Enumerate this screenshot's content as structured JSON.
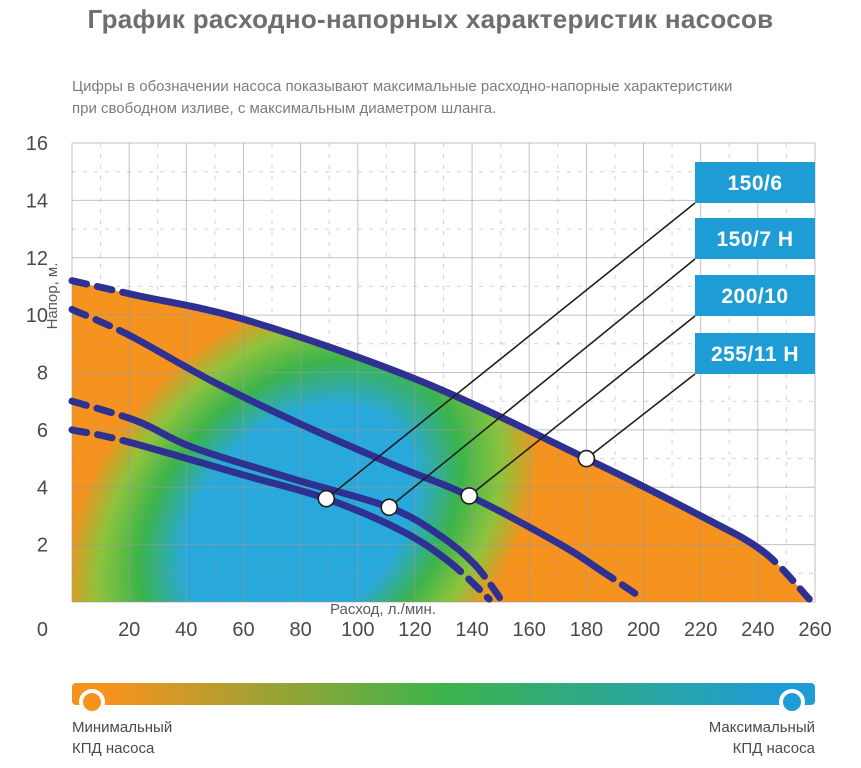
{
  "page": {
    "title": "График расходно-напорных характеристик насосов",
    "subtitle_line1": "Цифры в обозначении насоса показывают максимальные расходно-напорные характеристики",
    "subtitle_line2": "при свободном изливе, с максимальным диаметром шланга."
  },
  "chart_data": {
    "type": "line",
    "title": "График расходно-напорных характеристик насосов",
    "xlabel": "Расход, л./мин.",
    "ylabel": "Напор, м.",
    "xlim": [
      0,
      260
    ],
    "ylim": [
      0,
      16
    ],
    "x_ticks": [
      20,
      40,
      60,
      80,
      100,
      120,
      140,
      160,
      180,
      200,
      220,
      240,
      260
    ],
    "y_ticks": [
      0,
      2,
      4,
      6,
      8,
      10,
      12,
      14,
      16
    ],
    "minor_x_step": 10,
    "minor_y_step": 1,
    "grid": true,
    "origin_label": "0",
    "legend_position": "right-callout-boxes",
    "series": [
      {
        "name": "150/6",
        "max_flow_lpm": 150,
        "max_head_m": 6,
        "points": [
          [
            0,
            6.0
          ],
          [
            19,
            5.6
          ],
          [
            61,
            4.4
          ],
          [
            89,
            3.6
          ],
          [
            115,
            2.5
          ],
          [
            132,
            1.4
          ],
          [
            146,
            0.1
          ]
        ],
        "callout": [
          89,
          3.6
        ]
      },
      {
        "name": "150/7 Н",
        "max_flow_lpm": 150,
        "max_head_m": 7,
        "points": [
          [
            0,
            7.0
          ],
          [
            23,
            6.3
          ],
          [
            42,
            5.4
          ],
          [
            77,
            4.3
          ],
          [
            111,
            3.3
          ],
          [
            129,
            2.3
          ],
          [
            141,
            1.3
          ],
          [
            150,
            0.1
          ]
        ],
        "callout": [
          111,
          3.3
        ]
      },
      {
        "name": "200/10",
        "max_flow_lpm": 200,
        "max_head_m": 10,
        "points": [
          [
            0,
            10.2
          ],
          [
            20,
            9.3
          ],
          [
            49,
            7.7
          ],
          [
            80,
            6.2
          ],
          [
            112,
            4.8
          ],
          [
            139,
            3.7
          ],
          [
            171,
            2.0
          ],
          [
            185,
            1.1
          ],
          [
            200,
            0.1
          ]
        ],
        "callout": [
          139,
          3.7
        ]
      },
      {
        "name": "255/11 Н",
        "max_flow_lpm": 255,
        "max_head_m": 11,
        "points": [
          [
            0,
            11.2
          ],
          [
            22,
            10.7
          ],
          [
            62,
            9.8
          ],
          [
            122,
            7.7
          ],
          [
            180,
            5.0
          ],
          [
            220,
            3.0
          ],
          [
            242,
            1.75
          ],
          [
            258,
            0.1
          ]
        ],
        "callout": [
          180,
          5.0
        ]
      }
    ],
    "colors": {
      "curve": "#2E3192",
      "label_box": "#1E9CD6",
      "label_text": "#FFFFFF",
      "leader_line": "#1F1F1F",
      "callout_dot_fill": "#FFFFFF",
      "grid": "#9A9A9A",
      "axis_text": "#4A4A4A",
      "axis_title": "#5A5A5A",
      "efficiency_low": "#F6921E",
      "efficiency_blend": "#8CC43C",
      "efficiency_mid": "#3CB44B",
      "efficiency_high": "#29A8DC"
    }
  },
  "efficiency_legend": {
    "min_line1": "Минимальный",
    "min_line2": "КПД насоса",
    "max_line1": "Максимальный",
    "max_line2": "КПД насоса",
    "low_color": "#F6921E",
    "mid_color": "#3CB44B",
    "high_color": "#1E9CD6"
  }
}
